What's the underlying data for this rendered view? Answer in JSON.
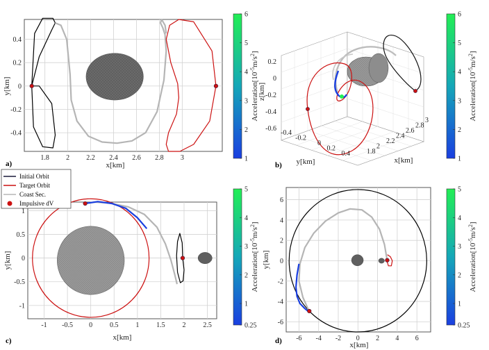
{
  "colorbar_label_prefix": "Acceleration[10",
  "colorbar_label_exp1": "-5",
  "colorbar_label_mid": "m/s",
  "colorbar_label_exp2": "2",
  "colorbar_label_suffix": "]",
  "colors": {
    "initial_orbit": "#000000",
    "target_orbit": "#cc1111",
    "coast": "#b5b5b5",
    "impulse": "#cc1111",
    "asteroid": "#5f5f5f",
    "colormap_low": "#1a3fe0",
    "colormap_mid": "#15a7b8",
    "colormap_high": "#22ee55"
  },
  "legend": {
    "items": [
      {
        "label": "Initial Orbit",
        "kind": "line",
        "color": "#1a1a3a"
      },
      {
        "label": "Target Orbit",
        "kind": "line",
        "color": "#cc1111"
      },
      {
        "label": "Coast Sec.",
        "kind": "line",
        "color": "#b5b5b5"
      },
      {
        "label": "Impulsive dV",
        "kind": "dot",
        "color": "#cc1111"
      }
    ]
  },
  "chart_data": [
    {
      "panel": "a)",
      "type": "line",
      "view": "2d",
      "xlabel": "x[km]",
      "ylabel": "y[km]",
      "xlim": [
        1.62,
        3.35
      ],
      "ylim": [
        -0.56,
        0.57
      ],
      "xticks": [
        "1.8",
        "2",
        "2.2",
        "2.4",
        "2.6",
        "2.8",
        "3"
      ],
      "xtick_values": [
        1.8,
        2.0,
        2.2,
        2.4,
        2.6,
        2.8,
        3.0
      ],
      "yticks": [
        "0.4",
        "0.2",
        "0",
        "-0.2",
        "-0.4"
      ],
      "ytick_values": [
        0.4,
        0.2,
        0.0,
        -0.2,
        -0.4
      ],
      "grid": true,
      "colorbar": {
        "ticks": [
          "6",
          "5",
          "4",
          "3",
          "2",
          "1"
        ],
        "tick_values": [
          6,
          5,
          4,
          3,
          2,
          1
        ],
        "range": [
          1,
          6
        ]
      },
      "series": [
        {
          "role": "initial_orbit",
          "x": [
            1.685,
            1.75,
            1.86,
            1.89,
            1.87,
            1.78,
            1.71,
            1.685,
            1.7,
            1.78,
            1.87,
            1.89,
            1.86,
            1.75,
            1.685
          ],
          "y": [
            0.0,
            0.25,
            0.48,
            0.54,
            0.58,
            0.58,
            0.45,
            0.0,
            -0.35,
            -0.52,
            -0.53,
            -0.42,
            -0.15,
            0.0,
            0.0
          ]
        },
        {
          "role": "coast",
          "x": [
            1.89,
            1.94,
            1.99,
            2.02,
            2.03,
            2.08,
            2.18,
            2.3,
            2.43,
            2.56,
            2.68,
            2.78,
            2.84,
            2.86,
            2.85,
            2.83,
            2.81,
            2.82,
            2.85,
            2.86
          ],
          "y": [
            0.54,
            0.52,
            0.4,
            0.1,
            -0.12,
            -0.3,
            -0.43,
            -0.48,
            -0.49,
            -0.47,
            -0.4,
            -0.22,
            0.05,
            0.3,
            0.44,
            0.5,
            0.54,
            0.57,
            0.52,
            0.45
          ]
        },
        {
          "role": "target_orbit",
          "x": [
            3.295,
            3.26,
            3.1,
            2.97,
            2.89,
            2.86,
            2.9,
            2.96,
            2.97,
            2.95,
            2.88,
            2.86,
            2.88,
            2.98,
            3.1,
            3.24,
            3.295
          ],
          "y": [
            0.0,
            0.3,
            0.55,
            0.57,
            0.52,
            0.4,
            0.2,
            0.02,
            -0.1,
            -0.24,
            -0.4,
            -0.5,
            -0.56,
            -0.56,
            -0.5,
            -0.3,
            0.0
          ]
        }
      ],
      "impulses": [
        {
          "x": 1.685,
          "y": 0.0
        },
        {
          "x": 3.295,
          "y": 0.0
        }
      ],
      "asteroid": {
        "cx": 2.41,
        "cy": 0.08,
        "rx": 0.25,
        "ry": 0.2
      }
    },
    {
      "panel": "b)",
      "type": "line",
      "view": "3d",
      "xlabel": "x[km]",
      "ylabel": "y[km]",
      "zlabel": "z[km]",
      "xticks": [
        "1.8",
        "2",
        "2.2",
        "2.4",
        "2.6",
        "2.8",
        "3"
      ],
      "yticks": [
        "-0.4",
        "-0.2",
        "0",
        "0.2",
        "0.4"
      ],
      "zticks": [
        "0.2",
        "0",
        "-0.2",
        "-0.4",
        "-0.6"
      ],
      "grid": true,
      "colorbar": {
        "ticks": [
          "6",
          "5",
          "4",
          "3",
          "2",
          "1"
        ],
        "tick_values": [
          6,
          5,
          4,
          3,
          2,
          1
        ],
        "range": [
          1,
          6
        ]
      }
    },
    {
      "panel": "c)",
      "type": "line",
      "view": "2d",
      "xlabel": "x[km]",
      "ylabel": "y[km]",
      "xlim": [
        -1.35,
        2.7
      ],
      "ylim": [
        -1.28,
        1.18
      ],
      "xticks": [
        "-1",
        "-0.5",
        "0",
        "0.5",
        "1",
        "1.5",
        "2",
        "2.5"
      ],
      "xtick_values": [
        -1,
        -0.5,
        0,
        0.5,
        1,
        1.5,
        2,
        2.5
      ],
      "yticks": [
        "1",
        "0.5",
        "0",
        "-0.5",
        "-1"
      ],
      "ytick_values": [
        1,
        0.5,
        0,
        -0.5,
        -1
      ],
      "grid": true,
      "colorbar": {
        "ticks": [
          "5",
          "4",
          "3",
          "2",
          "1",
          "0.25"
        ],
        "tick_values": [
          5,
          4,
          3,
          2,
          1,
          0.25
        ],
        "range": [
          0.25,
          5
        ]
      },
      "series": [
        {
          "role": "target_orbit",
          "circle": {
            "cx": 0.0,
            "cy": 0.0,
            "r": 1.25
          }
        },
        {
          "role": "coast",
          "x": [
            -0.12,
            0.1,
            0.4,
            0.8,
            1.15,
            1.42,
            1.6,
            1.72,
            1.8,
            1.85
          ],
          "y": [
            1.15,
            1.18,
            1.16,
            1.08,
            0.92,
            0.65,
            0.3,
            -0.05,
            -0.35,
            -0.55
          ]
        },
        {
          "role": "accel",
          "x": [
            -0.12,
            0.15,
            0.45,
            0.75,
            1.0,
            1.2
          ],
          "y": [
            1.15,
            1.19,
            1.15,
            1.05,
            0.85,
            0.62
          ]
        },
        {
          "role": "initial_orbit",
          "x": [
            1.97,
            2.0,
            1.98,
            1.92,
            1.86,
            1.84,
            1.86,
            1.91,
            1.96,
            1.97
          ],
          "y": [
            0.0,
            -0.25,
            -0.48,
            -0.52,
            -0.3,
            0.05,
            0.35,
            0.52,
            0.32,
            0.0
          ]
        }
      ],
      "impulses": [
        {
          "x": -0.12,
          "y": 1.15
        },
        {
          "x": 1.97,
          "y": 0.0
        }
      ],
      "asteroid": {
        "cx": 0.0,
        "cy": -0.05,
        "rx": 0.72,
        "ry": 0.72
      },
      "asteroid2": {
        "cx": 2.45,
        "cy": 0.0,
        "rx": 0.15,
        "ry": 0.12
      }
    },
    {
      "panel": "d)",
      "type": "line",
      "view": "2d",
      "xlabel": "x[km]",
      "ylabel": "y[km]",
      "xlim": [
        -7.3,
        7.4
      ],
      "ylim": [
        -7.0,
        7.2
      ],
      "xticks": [
        "-6",
        "-4",
        "-2",
        "0",
        "2",
        "4",
        "6"
      ],
      "xtick_values": [
        -6,
        -4,
        -2,
        0,
        2,
        4,
        6
      ],
      "yticks": [
        "6",
        "4",
        "2",
        "0",
        "-2",
        "-4",
        "-6"
      ],
      "ytick_values": [
        6,
        4,
        2,
        0,
        -2,
        -4,
        -6
      ],
      "grid": true,
      "colorbar": {
        "ticks": [
          "5",
          "4",
          "3",
          "2",
          "1",
          "0.25"
        ],
        "tick_values": [
          5,
          4,
          3,
          2,
          1,
          0.25
        ],
        "range": [
          0.25,
          5
        ]
      },
      "series": [
        {
          "role": "initial_orbit",
          "circle": {
            "cx": 0.0,
            "cy": 0.0,
            "r": 7.0
          }
        },
        {
          "role": "coast",
          "x": [
            -5.0,
            -5.6,
            -6.0,
            -5.9,
            -5.4,
            -4.5,
            -3.3,
            -2.0,
            -0.8,
            0.4,
            1.4,
            2.2,
            2.7,
            2.95
          ],
          "y": [
            -4.9,
            -3.6,
            -2.0,
            -0.3,
            1.3,
            2.7,
            3.9,
            4.7,
            5.1,
            5.0,
            4.3,
            3.1,
            1.6,
            0.2
          ]
        },
        {
          "role": "accel",
          "x": [
            -6.0,
            -6.2,
            -6.3,
            -6.2,
            -5.9,
            -5.4,
            -4.9
          ],
          "y": [
            -0.3,
            -1.4,
            -2.6,
            -3.5,
            -4.2,
            -4.7,
            -5.1
          ]
        },
        {
          "role": "target_orbit",
          "x": [
            3.0,
            3.3,
            3.5,
            3.4,
            3.1,
            2.95
          ],
          "y": [
            0.6,
            0.4,
            0.0,
            -0.5,
            -0.5,
            0.0
          ]
        }
      ],
      "impulses": [
        {
          "x": -4.95,
          "y": -4.95
        },
        {
          "x": 2.98,
          "y": 0.05
        }
      ],
      "asteroid": {
        "cx": -0.05,
        "cy": 0.05,
        "rx": 0.6,
        "ry": 0.55
      },
      "asteroid2": {
        "cx": 2.4,
        "cy": 0.0,
        "rx": 0.3,
        "ry": 0.25
      }
    }
  ]
}
